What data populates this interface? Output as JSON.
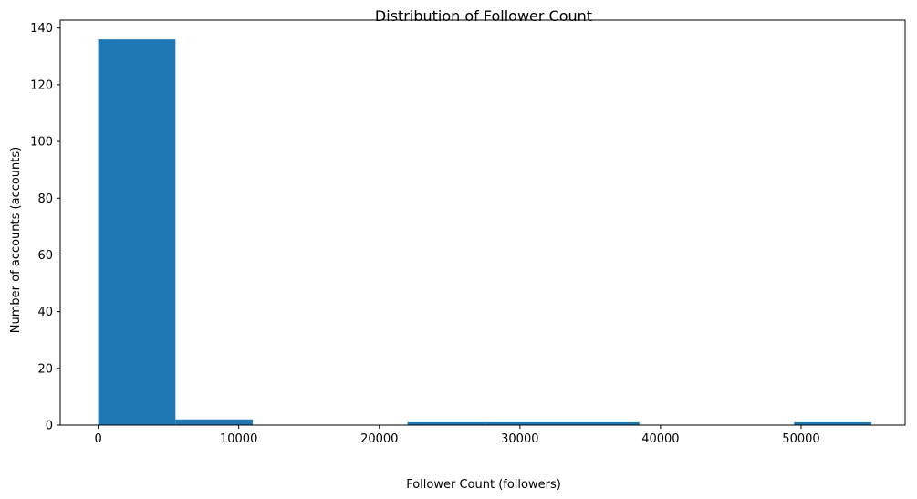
{
  "chart_data": {
    "type": "bar",
    "title": "Distribution of Follower Count",
    "xlabel": "Follower Count (followers)",
    "ylabel": "Number of accounts (accounts)",
    "xlim": [
      -2700,
      57400
    ],
    "ylim": [
      0,
      142.8
    ],
    "x_ticks": [
      0,
      10000,
      20000,
      30000,
      40000,
      50000
    ],
    "y_ticks": [
      0,
      20,
      40,
      60,
      80,
      100,
      120,
      140
    ],
    "bin_edges": [
      0,
      5500,
      11000,
      16500,
      22000,
      27500,
      33000,
      38500,
      44000,
      49500,
      55000
    ],
    "counts": [
      136,
      2,
      0,
      0,
      1,
      1,
      1,
      0,
      0,
      1
    ],
    "bar_color": "#1f77b4",
    "grid": false,
    "legend": "none"
  }
}
